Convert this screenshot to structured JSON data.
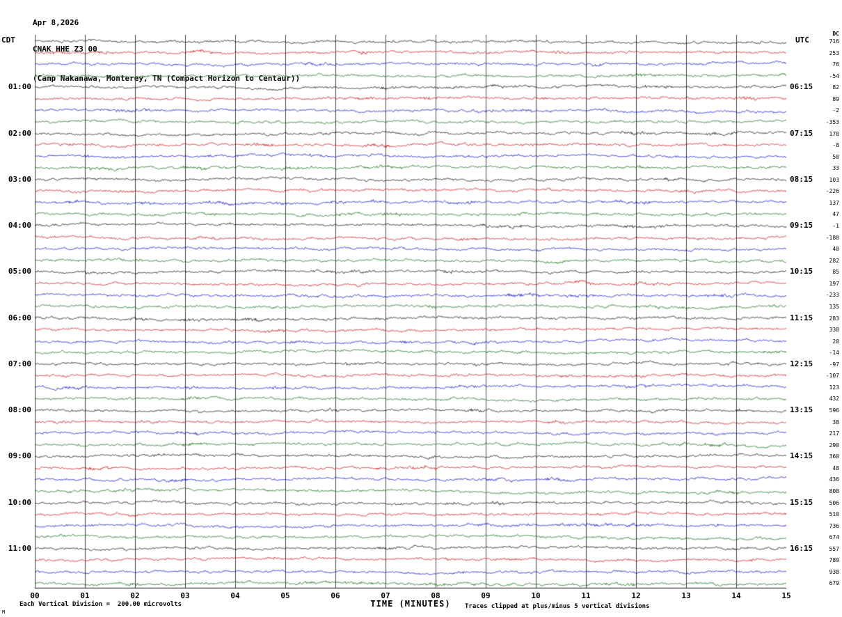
{
  "header": {
    "date": "Apr 8,2026",
    "station": "CNAK HHE Z3 00",
    "description": "(Camp Nakanawa, Monterey, TN (Compact Horizon to Centaur))"
  },
  "axes": {
    "left_label": "CDT",
    "right_label": "UTC",
    "dc_header": "DC",
    "xlabel": "TIME (MINUTES)"
  },
  "footer": {
    "left": "Each Vertical Division =  200.00 microvolts",
    "right": "Traces clipped at plus/minus 5 vertical divisions",
    "corner": "M"
  },
  "chart_data": {
    "type": "line",
    "subtype": "helicorder-seismogram",
    "title": "CNAK HHE Z3 00",
    "subtitle": "(Camp Nakanawa, Monterey, TN (Compact Horizon to Centaur))",
    "date": "Apr 8,2026",
    "xlabel": "TIME (MINUTES)",
    "x_ticks": [
      "00",
      "01",
      "02",
      "03",
      "04",
      "05",
      "06",
      "07",
      "08",
      "09",
      "10",
      "11",
      "12",
      "13",
      "14",
      "15"
    ],
    "x_range_minutes": [
      0,
      15
    ],
    "rows": 12,
    "traces_per_row": 4,
    "minutes_per_trace": 15,
    "trace_colors": [
      "#000000",
      "#cc0000",
      "#0000cc",
      "#006600"
    ],
    "left_axis_timezone": "CDT",
    "right_axis_timezone": "UTC",
    "left_times_cdt": [
      "01:00",
      "02:00",
      "03:00",
      "04:00",
      "05:00",
      "06:00",
      "07:00",
      "08:00",
      "09:00",
      "10:00",
      "11:00"
    ],
    "right_times_utc": [
      "06:15",
      "07:15",
      "08:15",
      "09:15",
      "10:15",
      "11:15",
      "12:15",
      "13:15",
      "14:15",
      "15:15",
      "16:15"
    ],
    "dc_header": "DC",
    "dc_values": [
      716,
      253,
      76,
      -54,
      82,
      89,
      -2,
      -353,
      170,
      -8,
      50,
      33,
      103,
      -226,
      137,
      47,
      -1,
      -180,
      40,
      282,
      85,
      197,
      -233,
      135,
      283,
      338,
      20,
      -14,
      -97,
      -107,
      123,
      432,
      596,
      38,
      217,
      290,
      360,
      48,
      436,
      808,
      506,
      510,
      736,
      674,
      557,
      789,
      938,
      679
    ],
    "vertical_division_microvolts": 200.0,
    "clip_divisions": 5,
    "grid": "vertical gridline at each minute",
    "legend_position": "none"
  }
}
